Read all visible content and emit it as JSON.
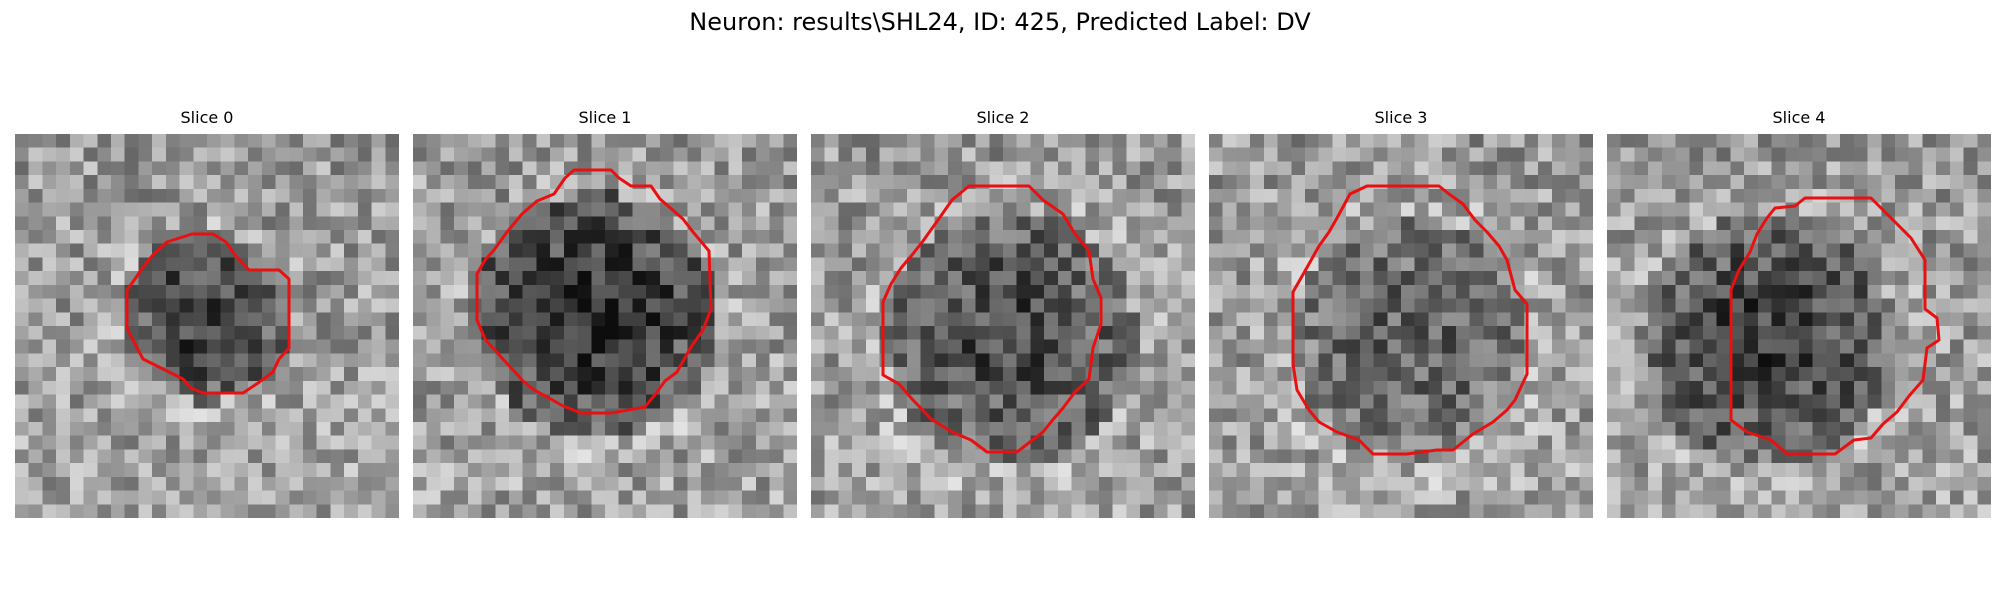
{
  "figure": {
    "title": "Neuron: results\\SHL24, ID: 425, Predicted Label: DV"
  },
  "panels": [
    {
      "title": "Slice 0",
      "outline_color": "#e81010",
      "dark_center": [
        4.8,
        4.6
      ],
      "dark_radius": 2.2,
      "dark_strength": 0.45,
      "seed": 11
    },
    {
      "title": "Slice 1",
      "outline_color": "#e81010",
      "dark_center": [
        4.6,
        4.6
      ],
      "dark_radius": 3.2,
      "dark_strength": 0.5,
      "seed": 23
    },
    {
      "title": "Slice 2",
      "outline_color": "#e81010",
      "dark_center": [
        5.0,
        5.1
      ],
      "dark_radius": 3.3,
      "dark_strength": 0.38,
      "seed": 37
    },
    {
      "title": "Slice 3",
      "outline_color": "#e81010",
      "dark_center": [
        5.1,
        5.2
      ],
      "dark_radius": 3.1,
      "dark_strength": 0.28,
      "seed": 41
    },
    {
      "title": "Slice 4",
      "outline_color": "#e81010",
      "dark_center": [
        4.0,
        5.2
      ],
      "dark_radius": 3.3,
      "dark_strength": 0.42,
      "seed": 53
    }
  ]
}
